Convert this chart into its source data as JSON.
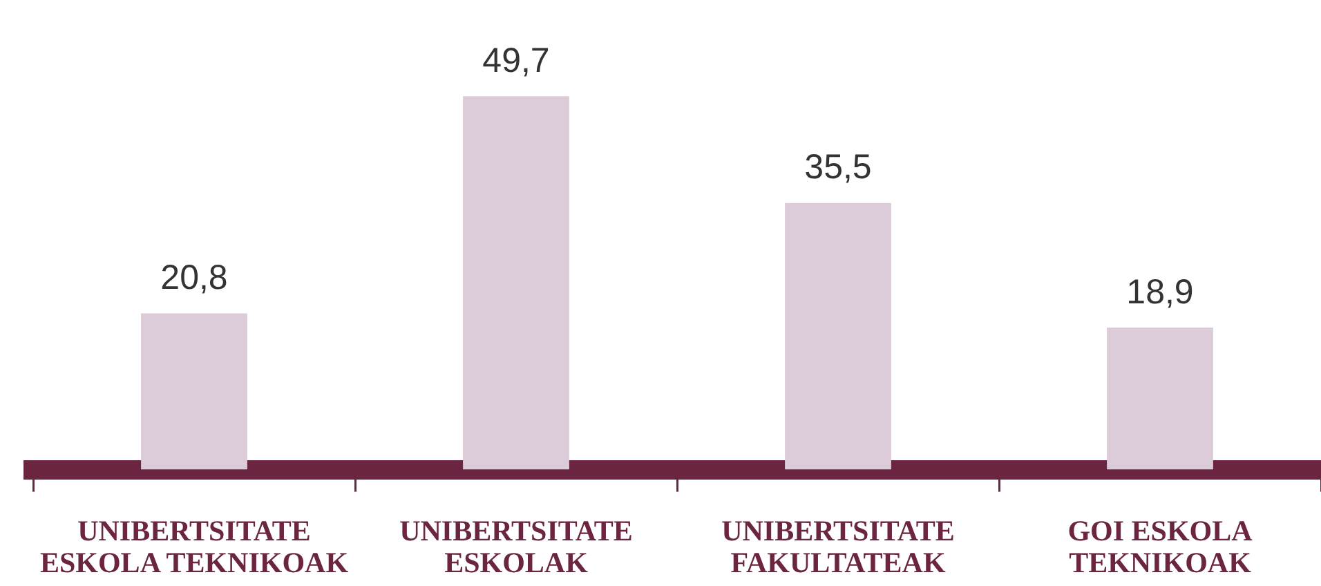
{
  "chart_data": {
    "type": "bar",
    "categories": [
      "UNIBERTSITATE ESKOLA TEKNIKOAK",
      "UNIBERTSITATE ESKOLAK",
      "UNIBERTSITATE FAKULTATEAK",
      "GOI ESKOLA TEKNIKOAK"
    ],
    "values": [
      20.8,
      49.7,
      35.5,
      18.9
    ],
    "value_labels": [
      "20,8",
      "49,7",
      "35,5",
      "18,9"
    ],
    "color": "#dccbd8",
    "tick_labels": "x"
  }
}
